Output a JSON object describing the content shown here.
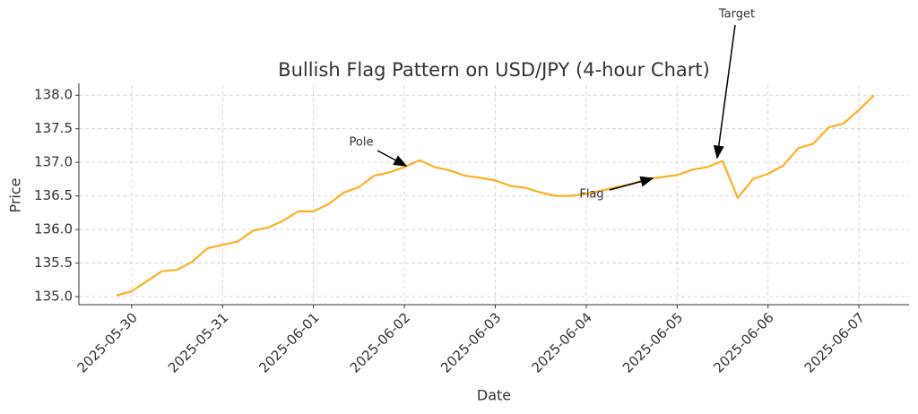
{
  "chart_data": {
    "type": "line",
    "title": "Bullish Flag Pattern on USD/JPY (4-hour Chart)",
    "x_label": "Date",
    "y_label": "Price",
    "categories": [
      null,
      "2025-05-30",
      null,
      null,
      null,
      null,
      null,
      "2025-05-31",
      null,
      null,
      null,
      null,
      null,
      "2025-06-01",
      null,
      null,
      null,
      null,
      null,
      "2025-06-02",
      null,
      null,
      null,
      null,
      null,
      "2025-06-03",
      null,
      null,
      null,
      null,
      null,
      "2025-06-04",
      null,
      null,
      null,
      null,
      null,
      "2025-06-05",
      null,
      null,
      null,
      null,
      null,
      "2025-06-06",
      null,
      null,
      null,
      null,
      null,
      "2025-06-07",
      null
    ],
    "series": [
      {
        "name": "USD/JPY",
        "color": "#fbb024",
        "values": [
          135.02,
          135.08,
          135.23,
          135.38,
          135.4,
          135.52,
          135.72,
          135.77,
          135.82,
          135.98,
          136.03,
          136.13,
          136.27,
          136.27,
          136.38,
          136.55,
          136.63,
          136.8,
          136.85,
          136.93,
          137.03,
          136.93,
          136.88,
          136.8,
          136.77,
          136.73,
          136.65,
          136.62,
          136.55,
          136.5,
          136.5,
          136.53,
          136.58,
          136.63,
          136.68,
          136.75,
          136.78,
          136.81,
          136.89,
          136.93,
          137.02,
          136.47,
          136.75,
          136.83,
          136.95,
          137.21,
          137.28,
          137.52,
          137.58,
          137.78,
          138.0
        ]
      }
    ],
    "ylim": [
      134.88,
      138.15
    ],
    "yticks": [
      {
        "value": 135,
        "label": "135.0"
      },
      135.5,
      {
        "value": 136,
        "label": "136.0"
      },
      136.5,
      {
        "value": 137,
        "label": "137.0"
      },
      137.5,
      {
        "value": 138,
        "label": "138.0"
      }
    ],
    "grid": true,
    "annotations": [
      "Pole",
      "Flag",
      "Target"
    ]
  }
}
